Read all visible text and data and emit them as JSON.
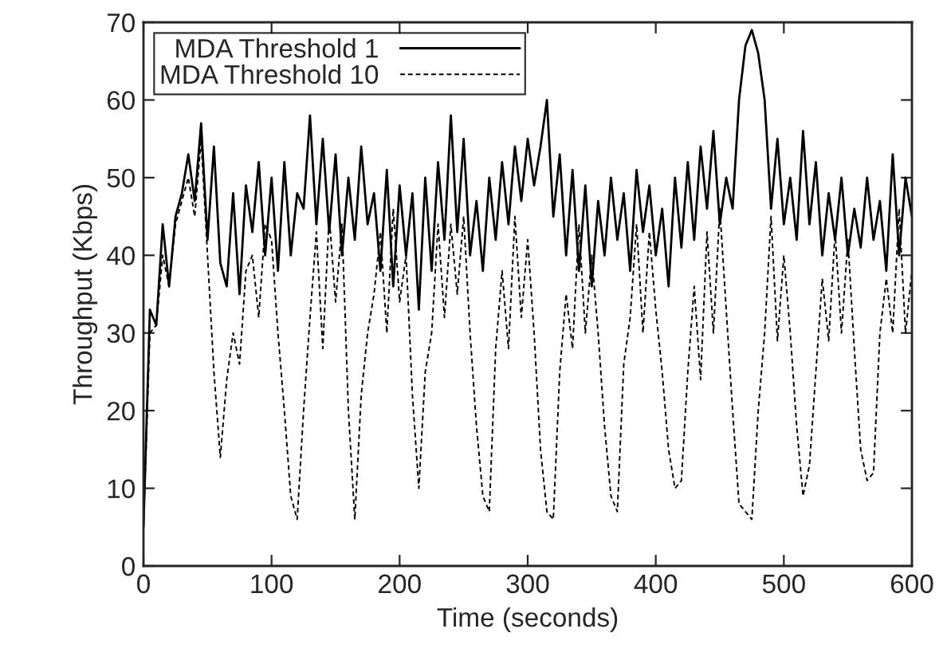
{
  "chart_data": {
    "type": "line",
    "xlabel": "Time (seconds)",
    "ylabel": "Throughput (Kbps)",
    "x": [
      0,
      5,
      10,
      15,
      20,
      25,
      30,
      35,
      40,
      45,
      50,
      55,
      60,
      65,
      70,
      75,
      80,
      85,
      90,
      95,
      100,
      105,
      110,
      115,
      120,
      125,
      130,
      135,
      140,
      145,
      150,
      155,
      160,
      165,
      170,
      175,
      180,
      185,
      190,
      195,
      200,
      205,
      210,
      215,
      220,
      225,
      230,
      235,
      240,
      245,
      250,
      255,
      260,
      265,
      270,
      275,
      280,
      285,
      290,
      295,
      300,
      305,
      310,
      315,
      320,
      325,
      330,
      335,
      340,
      345,
      350,
      355,
      360,
      365,
      370,
      375,
      380,
      385,
      390,
      395,
      400,
      405,
      410,
      415,
      420,
      425,
      430,
      435,
      440,
      445,
      450,
      455,
      460,
      465,
      470,
      475,
      480,
      485,
      490,
      495,
      500,
      505,
      510,
      515,
      520,
      525,
      530,
      535,
      540,
      545,
      550,
      555,
      560,
      565,
      570,
      575,
      580,
      585,
      590,
      595,
      600
    ],
    "series": [
      {
        "name": "MDA Threshold 1",
        "color": "#000000",
        "line_style": "solid",
        "values": [
          5,
          33,
          31,
          44,
          36,
          45,
          48,
          53,
          47,
          57,
          42,
          54,
          39,
          36,
          48,
          35,
          49,
          43,
          52,
          40,
          50,
          38,
          52,
          40,
          48,
          46,
          58,
          44,
          55,
          43,
          53,
          40,
          50,
          42,
          54,
          44,
          48,
          38,
          51,
          36,
          49,
          40,
          48,
          33,
          50,
          38,
          52,
          42,
          58,
          43,
          55,
          40,
          47,
          38,
          50,
          42,
          52,
          44,
          54,
          47,
          55,
          49,
          54,
          60,
          45,
          53,
          40,
          51,
          38,
          49,
          36,
          47,
          40,
          50,
          42,
          48,
          38,
          51,
          43,
          49,
          40,
          46,
          36,
          50,
          41,
          52,
          42,
          54,
          46,
          56,
          44,
          50,
          46,
          60,
          67,
          69,
          66,
          60,
          46,
          55,
          44,
          50,
          42,
          56,
          44,
          52,
          40,
          48,
          42,
          50,
          40,
          46,
          41,
          50,
          42,
          47,
          38,
          53,
          40,
          50,
          45
        ]
      },
      {
        "name": "MDA Threshold 10",
        "color": "#000000",
        "line_style": "dashed",
        "values": [
          5,
          30,
          31,
          40,
          36,
          44,
          47,
          50,
          45,
          55,
          40,
          25,
          14,
          24,
          30,
          26,
          38,
          40,
          32,
          44,
          42,
          30,
          20,
          9,
          6,
          20,
          32,
          43,
          28,
          45,
          34,
          44,
          20,
          6,
          22,
          30,
          35,
          43,
          30,
          46,
          34,
          40,
          22,
          10,
          25,
          30,
          44,
          32,
          44,
          35,
          45,
          30,
          18,
          9,
          7,
          28,
          38,
          28,
          45,
          32,
          42,
          30,
          15,
          7,
          6,
          25,
          35,
          28,
          44,
          30,
          40,
          30,
          18,
          9,
          7,
          26,
          32,
          44,
          30,
          43,
          33,
          25,
          15,
          10,
          11,
          25,
          36,
          24,
          43,
          30,
          46,
          33,
          20,
          8,
          7,
          6,
          20,
          30,
          45,
          29,
          40,
          30,
          18,
          9,
          13,
          25,
          37,
          29,
          43,
          30,
          42,
          28,
          15,
          11,
          12,
          30,
          37,
          30,
          46,
          30,
          38
        ]
      }
    ],
    "xlim": [
      0,
      600
    ],
    "xticks": [
      0,
      100,
      200,
      300,
      400,
      500,
      600
    ],
    "ylim": [
      0,
      70
    ],
    "yticks": [
      0,
      10,
      20,
      30,
      40,
      50,
      60,
      70
    ],
    "grid": false,
    "legend": "top left"
  }
}
